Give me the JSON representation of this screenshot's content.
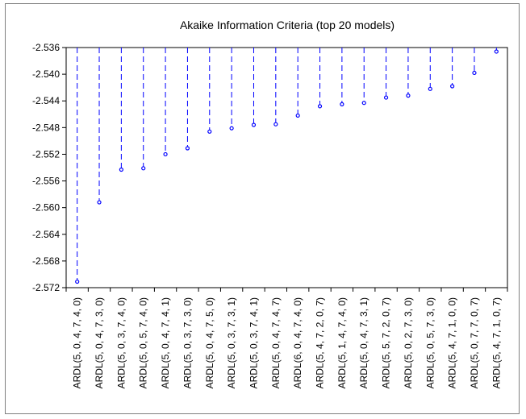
{
  "chart_data": {
    "type": "dropline",
    "title": "Akaike Information Criteria (top 20 models)",
    "xlabel": "",
    "ylabel": "",
    "ylim": [
      -2.572,
      -2.536
    ],
    "yticks": [
      -2.536,
      -2.54,
      -2.544,
      -2.548,
      -2.552,
      -2.556,
      -2.56,
      -2.564,
      -2.568,
      -2.572
    ],
    "ytick_labels": [
      "-2.536",
      "-2.540",
      "-2.544",
      "-2.548",
      "-2.552",
      "-2.556",
      "-2.560",
      "-2.564",
      "-2.568",
      "-2.572"
    ],
    "grid": false,
    "legend": false,
    "categories": [
      "ARDL(5, 0, 4, 7, 4, 0)",
      "ARDL(5, 0, 4, 7, 3, 0)",
      "ARDL(5, 0, 3, 7, 4, 0)",
      "ARDL(5, 0, 5, 7, 4, 0)",
      "ARDL(5, 0, 4, 7, 4, 1)",
      "ARDL(5, 0, 3, 7, 3, 0)",
      "ARDL(5, 0, 4, 7, 5, 0)",
      "ARDL(5, 0, 3, 7, 3, 1)",
      "ARDL(5, 0, 3, 7, 4, 1)",
      "ARDL(5, 0, 4, 7, 4, 7)",
      "ARDL(6, 0, 4, 7, 4, 0)",
      "ARDL(5, 4, 7, 2, 0, 7)",
      "ARDL(5, 1, 4, 7, 4, 0)",
      "ARDL(5, 0, 4, 7, 3, 1)",
      "ARDL(5, 5, 7, 2, 0, 7)",
      "ARDL(5, 0, 2, 7, 3, 0)",
      "ARDL(5, 0, 5, 7, 3, 0)",
      "ARDL(5, 4, 7, 1, 0, 0)",
      "ARDL(5, 0, 7, 7, 0, 7)",
      "ARDL(5, 4, 7, 1, 0, 7)"
    ],
    "values": [
      -2.5711,
      -2.5592,
      -2.5543,
      -2.5541,
      -2.552,
      -2.5511,
      -2.5486,
      -2.5481,
      -2.5476,
      -2.5475,
      -2.5462,
      -2.5448,
      -2.5445,
      -2.5443,
      -2.5435,
      -2.5432,
      -2.5422,
      -2.5418,
      -2.5398,
      -2.5366
    ],
    "colors": {
      "marker": "#0000ff",
      "axis": "#000000",
      "frame": "#808080"
    }
  }
}
